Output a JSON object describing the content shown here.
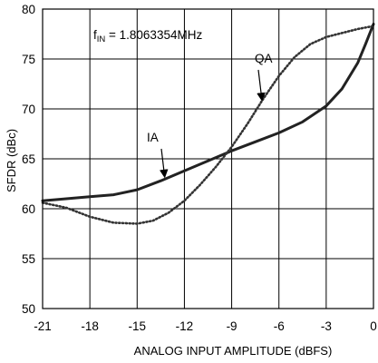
{
  "chart_data": {
    "type": "line",
    "xlabel": "ANALOG INPUT AMPLITUDE (dBFS)",
    "ylabel": "SFDR (dBc)",
    "xlim": [
      -21,
      0
    ],
    "ylim": [
      50,
      80
    ],
    "xticks": [
      -21,
      -18,
      -15,
      -12,
      -9,
      -6,
      -3,
      0
    ],
    "xtick_labels": [
      "-21",
      "-18",
      "-15",
      "-12",
      "-9",
      "-6",
      "-3",
      "0"
    ],
    "yticks": [
      50,
      55,
      60,
      65,
      70,
      75,
      80
    ],
    "ytick_labels": [
      "50",
      "55",
      "60",
      "65",
      "70",
      "75",
      "80"
    ],
    "grid": true,
    "annotation": {
      "f_main": "f",
      "f_sub": "IN",
      "f_rest": " = 1.8063354MHz"
    },
    "series": [
      {
        "name": "IA",
        "style": "solid",
        "color": "#222222",
        "x": [
          -21,
          -19.5,
          -18,
          -16.5,
          -15,
          -13.5,
          -12,
          -10.5,
          -9,
          -7.5,
          -6,
          -4.5,
          -3,
          -2,
          -1,
          -0.5,
          0
        ],
        "y": [
          60.8,
          61.0,
          61.2,
          61.4,
          61.9,
          62.8,
          63.8,
          64.8,
          65.8,
          66.7,
          67.6,
          68.7,
          70.3,
          72.0,
          74.6,
          76.5,
          78.5
        ]
      },
      {
        "name": "QA",
        "style": "dotted",
        "color": "#333333",
        "x": [
          -21,
          -19.5,
          -18,
          -16.5,
          -15,
          -14,
          -13,
          -12,
          -11,
          -10,
          -9,
          -8,
          -7,
          -6,
          -5,
          -4,
          -3,
          -2,
          -1,
          0
        ],
        "y": [
          60.6,
          60.1,
          59.2,
          58.6,
          58.5,
          58.8,
          59.6,
          60.8,
          62.4,
          64.2,
          66.2,
          68.5,
          71.0,
          73.3,
          75.2,
          76.5,
          77.2,
          77.6,
          78.0,
          78.3
        ]
      }
    ]
  }
}
